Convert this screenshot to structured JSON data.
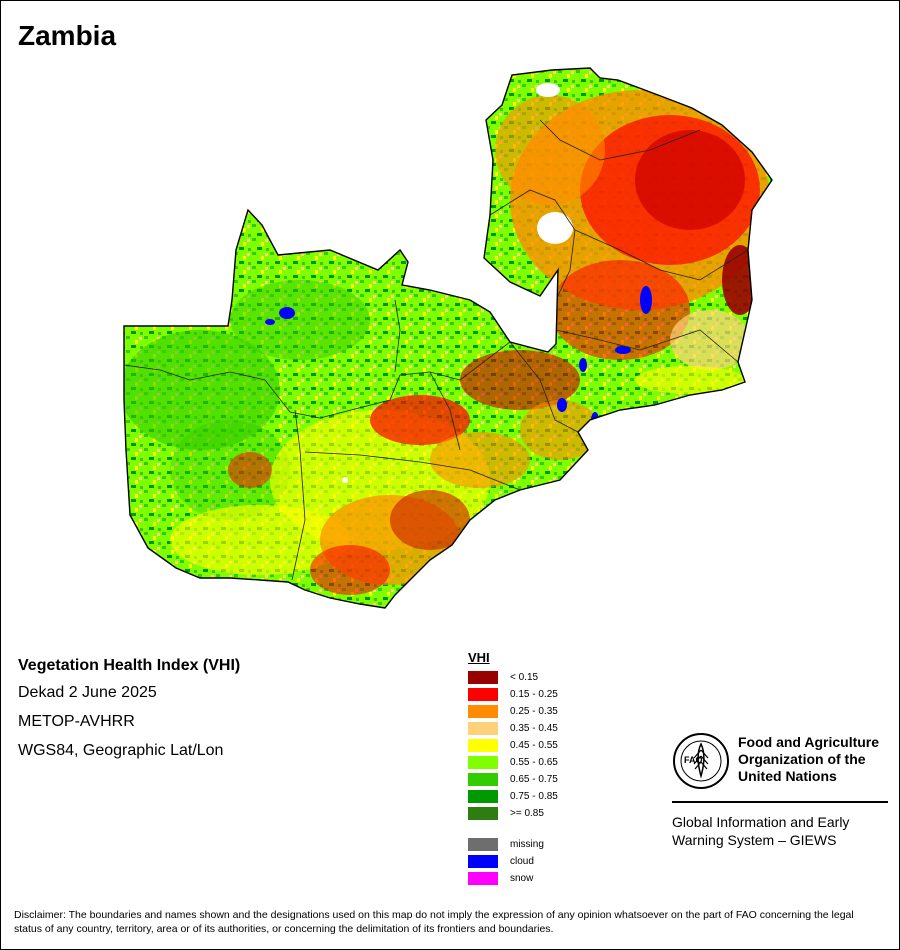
{
  "title": "Zambia",
  "info": {
    "product": "Vegetation Health Index (VHI)",
    "period": "Dekad 2 June 2025",
    "sensor": "METOP-AVHRR",
    "projection": "WGS84, Geographic Lat/Lon"
  },
  "legend": {
    "heading": "VHI",
    "classes": [
      {
        "label": "< 0.15",
        "color": "#990000"
      },
      {
        "label": "0.15 - 0.25",
        "color": "#ff0000"
      },
      {
        "label": "0.25 - 0.35",
        "color": "#ff8c00"
      },
      {
        "label": "0.35 - 0.45",
        "color": "#ffd27a"
      },
      {
        "label": "0.45 - 0.55",
        "color": "#ffff00"
      },
      {
        "label": "0.55 - 0.65",
        "color": "#7fff00"
      },
      {
        "label": "0.65 - 0.75",
        "color": "#33cc00"
      },
      {
        "label": "0.75 - 0.85",
        "color": "#009900"
      },
      {
        "label": ">= 0.85",
        "color": "#2e7d10"
      }
    ],
    "extra": [
      {
        "label": "missing",
        "color": "#6e6e6e"
      },
      {
        "label": "cloud",
        "color": "#0000ff"
      },
      {
        "label": "snow",
        "color": "#ff00ff"
      }
    ]
  },
  "organization": {
    "name_line1": "Food and Agriculture",
    "name_line2": "Organization of the",
    "name_line3": "United Nations",
    "system_line1": "Global Information and Early",
    "system_line2": "Warning System – GIEWS",
    "emblem_text": "FIAT PANIS",
    "emblem_letters": "FAO"
  },
  "disclaimer": "Disclaimer: The boundaries and names shown and the designations used on this map do not imply the expression of any opinion whatsoever on the part of FAO concerning the legal status of any country, territory, area or of its authorities, or concerning the delimitation of its frontiers and boundaries."
}
